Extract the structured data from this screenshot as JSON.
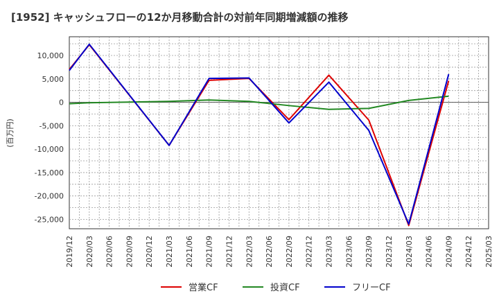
{
  "chart_data": {
    "type": "line",
    "title": "[1952]  キャッシュフローの12か月移動合計の対前年同期増減額の推移",
    "ylabel": "(百万円)",
    "xlabel": "",
    "ylim": [
      -27000,
      14000
    ],
    "yticks": [
      10000,
      5000,
      0,
      -5000,
      -10000,
      -15000,
      -20000,
      -25000
    ],
    "ytick_labels": [
      "10,000",
      "5,000",
      "0",
      "-5,000",
      "-10,000",
      "-15,000",
      "-20,000",
      "-25,000"
    ],
    "categories": [
      "2019/12",
      "2020/03",
      "2020/06",
      "2020/09",
      "2020/12",
      "2021/03",
      "2021/06",
      "2021/09",
      "2021/12",
      "2022/03",
      "2022/06",
      "2022/09",
      "2022/12",
      "2023/03",
      "2023/06",
      "2023/09",
      "2023/12",
      "2024/03",
      "2024/06",
      "2024/09",
      "2024/12",
      "2025/03"
    ],
    "series": [
      {
        "name": "営業CF",
        "color": "#dd0000",
        "values": [
          7000,
          12300,
          null,
          null,
          null,
          -9200,
          null,
          4700,
          null,
          5100,
          null,
          -3700,
          null,
          5800,
          null,
          -3800,
          null,
          -26300,
          null,
          4600,
          null,
          null
        ]
      },
      {
        "name": "投資CF",
        "color": "#228822",
        "values": [
          -300,
          -100,
          null,
          null,
          null,
          200,
          null,
          500,
          null,
          200,
          null,
          -700,
          null,
          -1500,
          null,
          -1300,
          null,
          400,
          null,
          1300,
          null,
          null
        ]
      },
      {
        "name": "フリーCF",
        "color": "#0000cc",
        "values": [
          6800,
          12400,
          null,
          null,
          null,
          -9200,
          null,
          5100,
          null,
          5200,
          null,
          -4400,
          null,
          4300,
          null,
          -6000,
          null,
          -26000,
          null,
          6000,
          null,
          null
        ]
      }
    ],
    "grid": true,
    "legend": "bottom"
  }
}
